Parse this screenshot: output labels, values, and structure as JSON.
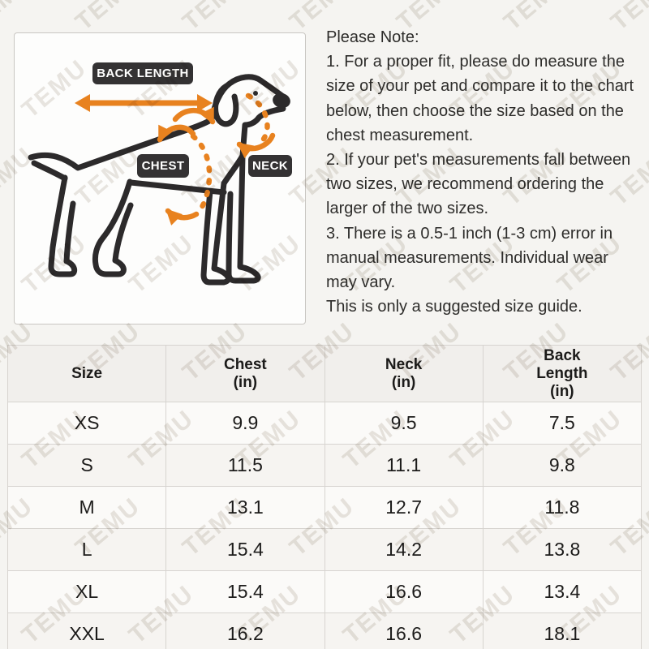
{
  "watermark": {
    "text": "TEMU",
    "color": "#e9e6e2"
  },
  "colors": {
    "accent_orange": "#e8821f",
    "label_background": "#343233",
    "dog_line": "#2c2a2b",
    "page_background": "#f5f4f1"
  },
  "diagram": {
    "back_length_label": "BACK LENGTH",
    "chest_label": "CHEST",
    "neck_label": "NECK"
  },
  "note": {
    "title": "Please Note:",
    "body": "1. For a proper fit, please do measure the\nsize of your pet and compare it to the chart\nbelow, then choose the size based on the\nchest measurement.\n2. If your pet's measurements fall between\ntwo sizes, we recommend ordering the\nlarger of the two sizes.\n3. There is a 0.5-1 inch (1-3 cm) error in\nmanual measurements. Individual wear\nmay vary.\nThis is only a suggested size guide."
  },
  "size_table": {
    "columns": [
      "Size",
      "Chest\n(in)",
      "Neck\n(in)",
      "Back\nLength\n(in)"
    ],
    "rows": [
      {
        "size": "XS",
        "chest": "9.9",
        "neck": "9.5",
        "back_length": "7.5"
      },
      {
        "size": "S",
        "chest": "11.5",
        "neck": "11.1",
        "back_length": "9.8"
      },
      {
        "size": "M",
        "chest": "13.1",
        "neck": "12.7",
        "back_length": "11.8"
      },
      {
        "size": "L",
        "chest": "15.4",
        "neck": "14.2",
        "back_length": "13.8"
      },
      {
        "size": "XL",
        "chest": "15.4",
        "neck": "16.6",
        "back_length": "13.4"
      },
      {
        "size": "XXL",
        "chest": "16.2",
        "neck": "16.6",
        "back_length": "18.1"
      }
    ]
  }
}
